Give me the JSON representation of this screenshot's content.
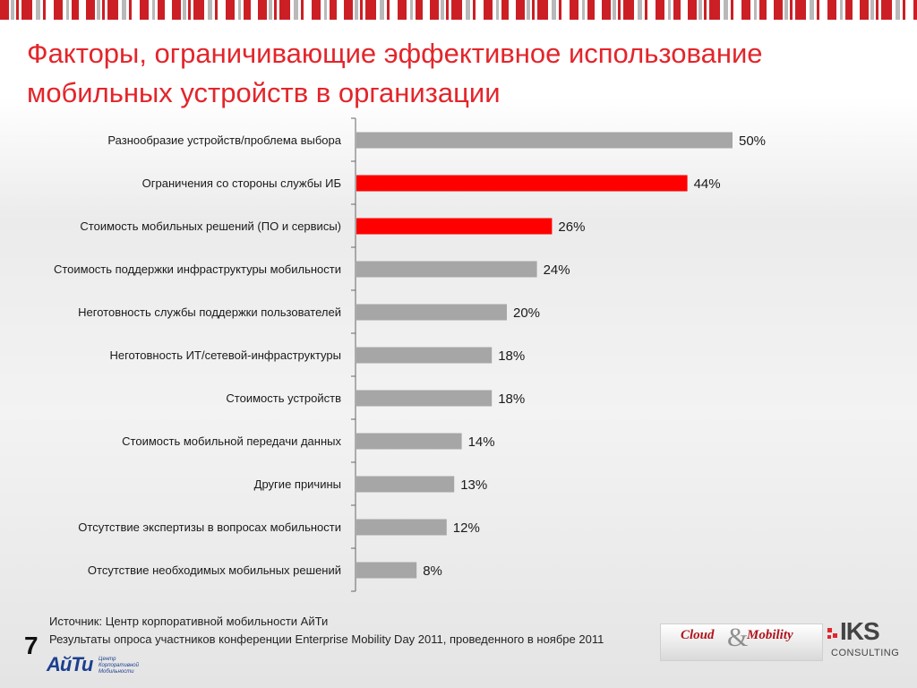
{
  "title": {
    "line1": "Факторы, ограничивающие эффективное использование",
    "line2": "мобильных устройств в организации"
  },
  "colors": {
    "title": "#e3252b",
    "bar_gray": "#a6a6a6",
    "bar_red": "#ff0000",
    "stripe_red": "#cc1f25",
    "stripe_gray": "#b9b9b9"
  },
  "chart_data": {
    "type": "bar",
    "orientation": "horizontal",
    "categories": [
      "Разнообразие устройств/проблема выбора",
      "Ограничения со стороны службы ИБ",
      "Стоимость мобильных решений (ПО и сервисы)",
      "Стоимость поддержки инфраструктуры мобильности",
      "Неготовность службы поддержки пользователей",
      "Неготовность ИТ/сетевой-инфраструктуры",
      "Стоимость устройств",
      "Стоимость мобильной передачи данных",
      "Другие причины",
      "Отсутствие экспертизы в вопросах мобильности",
      "Отсутствие необходимых мобильных решений"
    ],
    "values": [
      50,
      44,
      26,
      24,
      20,
      18,
      18,
      14,
      13,
      12,
      8
    ],
    "value_labels": [
      "50%",
      "44%",
      "26%",
      "24%",
      "20%",
      "18%",
      "18%",
      "14%",
      "13%",
      "12%",
      "8%"
    ],
    "highlighted": [
      false,
      true,
      true,
      false,
      false,
      false,
      false,
      false,
      false,
      false,
      false
    ],
    "unit": "%",
    "xlim": [
      0,
      50
    ],
    "grid": false,
    "legend": "none"
  },
  "footer": {
    "source_line1": "Источник: Центр корпоративной мобильности АйТи",
    "source_line2": "Результаты опроса участников конференции Enterprise Mobility Day 2011, проведенного в ноябре 2011",
    "page_number": "7"
  },
  "logos": {
    "aiti_word": "АйТи",
    "aiti_sub": [
      "Центр",
      "Корпоративной",
      "Мобильности"
    ],
    "cloud_word1": "Cloud",
    "cloud_amp": "&",
    "cloud_word2": "Mobility",
    "iks_word": "IKS",
    "iks_sub": "CONSULTING"
  }
}
